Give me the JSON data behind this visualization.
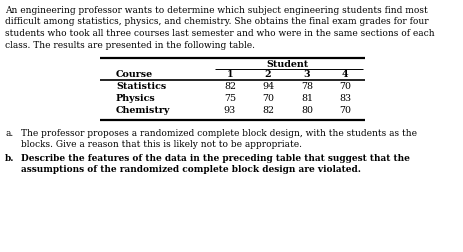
{
  "intro_line1": "An engineering professor wants to determine which subject engineering students find most",
  "intro_line2": "difficult among statistics, physics, and chemistry. She obtains the final exam grades for four",
  "intro_line3": "students who took all three courses last semester and who were in the same sections of each",
  "intro_line4": "class. The results are presented in the following table.",
  "table_header": "Student",
  "col_header_course": "Course",
  "col_headers_nums": [
    "1",
    "2",
    "3",
    "4"
  ],
  "rows": [
    [
      "Statistics",
      "82",
      "94",
      "78",
      "70"
    ],
    [
      "Physics",
      "75",
      "70",
      "81",
      "83"
    ],
    [
      "Chemistry",
      "93",
      "82",
      "80",
      "70"
    ]
  ],
  "item_a_num": "a.",
  "item_a_line1": "The professor proposes a randomized complete block design, with the students as the",
  "item_a_line2": "blocks. Give a reason that this is likely not to be appropriate.",
  "item_b_num": "b.",
  "item_b_line1": "Describe the features of the data in the preceding table that suggest that the",
  "item_b_line2": "assumptions of the randomized complete block design are violated.",
  "text_color": "#000000",
  "bg_color": "#ffffff",
  "font_size": 6.5,
  "font_size_table": 6.8,
  "font_family": "DejaVu Serif"
}
